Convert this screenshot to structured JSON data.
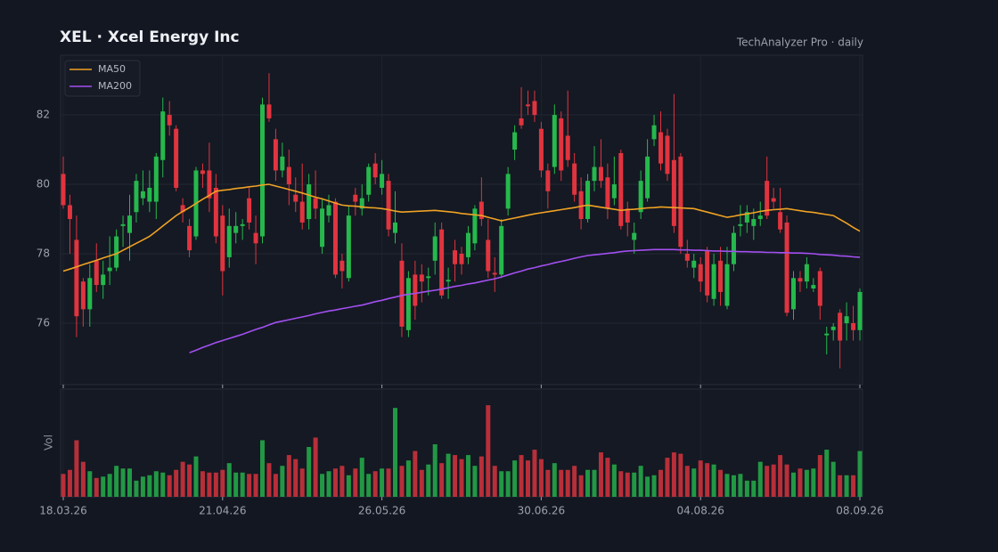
{
  "chart_data": {
    "type": "candlestick",
    "title": "XEL  ·  Xcel Energy Inc",
    "subtitle": "TechAnalyzer Pro · daily",
    "volume_label": "Vol",
    "categories": [
      "18.03.26",
      null,
      null,
      null,
      null,
      null,
      null,
      null,
      null,
      null,
      null,
      null,
      null,
      null,
      null,
      null,
      null,
      null,
      null,
      null,
      null,
      null,
      null,
      null,
      "21.04.26",
      null,
      null,
      null,
      null,
      null,
      null,
      null,
      null,
      null,
      null,
      null,
      null,
      null,
      null,
      null,
      null,
      null,
      null,
      null,
      null,
      null,
      null,
      null,
      "26.05.26",
      null,
      null,
      null,
      null,
      null,
      null,
      null,
      null,
      null,
      null,
      null,
      null,
      null,
      null,
      null,
      null,
      null,
      null,
      null,
      null,
      null,
      null,
      null,
      "30.06.26",
      null,
      null,
      null,
      null,
      null,
      null,
      null,
      null,
      null,
      null,
      null,
      null,
      null,
      null,
      null,
      null,
      null,
      null,
      null,
      null,
      null,
      null,
      null,
      "04.08.26",
      null,
      null,
      null,
      null,
      null,
      null,
      null,
      null,
      null,
      null,
      null,
      null,
      null,
      null,
      null,
      null,
      null,
      null,
      null,
      null,
      null,
      null,
      null,
      "08.09.26"
    ],
    "open": [
      80.3,
      79.4,
      78.4,
      77.2,
      76.4,
      77.8,
      77.1,
      77.5,
      77.6,
      78.8,
      78.6,
      79.2,
      79.6,
      79.5,
      79.5,
      80.7,
      82.0,
      81.6,
      79.4,
      78.8,
      78.5,
      80.4,
      80.4,
      79.9,
      79.1,
      77.9,
      78.6,
      78.8,
      79.6,
      78.6,
      78.5,
      82.3,
      81.3,
      80.4,
      80.5,
      79.7,
      79.5,
      79.0,
      79.6,
      78.2,
      79.1,
      79.5,
      77.8,
      77.3,
      79.7,
      79.3,
      79.7,
      80.6,
      79.9,
      80.1,
      78.6,
      77.8,
      75.8,
      77.4,
      77.4,
      77.3,
      77.8,
      78.7,
      77.2,
      78.1,
      78.0,
      77.9,
      78.3,
      79.5,
      78.4,
      77.45,
      77.4,
      79.3,
      81.0,
      81.9,
      82.3,
      82.4,
      81.6,
      80.4,
      80.5,
      81.9,
      81.4,
      80.6,
      79.8,
      79.0,
      80.1,
      80.5,
      80.2,
      79.6,
      80.9,
      79.3,
      78.4,
      79.2,
      79.6,
      81.3,
      81.5,
      81.4,
      80.7,
      80.8,
      78.0,
      77.6,
      77.7,
      78.1,
      76.7,
      77.8,
      76.5,
      77.7,
      78.8,
      78.9,
      78.8,
      79.0,
      80.1,
      79.6,
      79.2,
      78.9,
      76.4,
      77.3,
      77.2,
      77.0,
      77.5,
      75.65,
      75.8,
      76.3,
      76.0,
      76.0,
      75.8
    ],
    "high": [
      80.8,
      79.7,
      79.1,
      77.3,
      77.7,
      78.3,
      77.8,
      78.5,
      78.7,
      79.1,
      79.7,
      80.3,
      80.4,
      80.4,
      80.9,
      82.5,
      82.4,
      81.7,
      79.6,
      79.0,
      80.5,
      80.6,
      81.2,
      80.3,
      79.4,
      79.3,
      79.2,
      79.0,
      79.9,
      79.1,
      82.5,
      83.2,
      81.6,
      81.2,
      81.0,
      80.2,
      80.6,
      80.3,
      80.4,
      79.6,
      79.7,
      79.6,
      78.0,
      79.4,
      79.9,
      80.0,
      80.6,
      80.9,
      80.7,
      80.3,
      79.8,
      78.3,
      77.5,
      77.8,
      77.7,
      77.6,
      78.9,
      78.9,
      77.6,
      78.4,
      78.2,
      78.8,
      79.4,
      80.2,
      79.0,
      77.9,
      79.0,
      80.5,
      81.7,
      82.8,
      82.7,
      82.7,
      81.8,
      80.6,
      82.3,
      82.1,
      82.7,
      80.9,
      80.2,
      80.3,
      81.1,
      81.3,
      80.6,
      80.8,
      81.0,
      79.5,
      78.9,
      80.4,
      81.3,
      82.0,
      82.1,
      81.6,
      82.6,
      80.9,
      78.4,
      78.0,
      77.9,
      78.2,
      78.0,
      78.2,
      78.2,
      78.8,
      79.4,
      79.4,
      79.3,
      79.5,
      80.8,
      79.9,
      79.9,
      79.1,
      77.5,
      77.5,
      77.9,
      77.3,
      77.6,
      75.9,
      76.0,
      76.4,
      76.6,
      76.5,
      77.0
    ],
    "low": [
      79.3,
      78.0,
      75.6,
      75.9,
      75.9,
      76.9,
      76.7,
      77.1,
      77.5,
      78.2,
      77.8,
      78.9,
      79.4,
      79.2,
      79.0,
      80.2,
      81.4,
      79.8,
      78.9,
      77.9,
      78.4,
      79.9,
      79.2,
      78.3,
      76.8,
      77.6,
      78.3,
      78.4,
      78.7,
      77.7,
      78.3,
      81.8,
      80.1,
      80.2,
      79.4,
      79.2,
      78.7,
      78.7,
      79.0,
      78.0,
      78.9,
      77.3,
      77.0,
      77.2,
      79.1,
      79.1,
      79.5,
      80.0,
      79.7,
      78.5,
      78.3,
      75.6,
      75.6,
      76.1,
      76.6,
      76.8,
      77.4,
      76.7,
      76.7,
      77.2,
      77.4,
      77.7,
      78.1,
      78.8,
      77.3,
      76.9,
      77.3,
      79.1,
      80.7,
      81.6,
      82.0,
      81.8,
      80.2,
      79.3,
      80.3,
      80.1,
      80.5,
      79.5,
      78.7,
      78.9,
      79.8,
      79.9,
      79.0,
      79.4,
      78.7,
      78.5,
      78.0,
      79.0,
      79.5,
      81.1,
      80.4,
      80.1,
      78.6,
      78.0,
      77.6,
      77.3,
      76.9,
      76.6,
      76.5,
      76.5,
      76.4,
      77.5,
      78.5,
      78.6,
      78.4,
      78.8,
      79.0,
      79.3,
      78.6,
      76.2,
      76.1,
      76.9,
      77.0,
      76.9,
      76.1,
      75.1,
      75.5,
      74.7,
      75.5,
      75.5,
      75.5
    ],
    "close": [
      79.4,
      79.0,
      76.2,
      76.4,
      77.3,
      77.1,
      77.4,
      77.6,
      78.5,
      78.85,
      79.1,
      80.1,
      79.8,
      79.9,
      80.8,
      82.1,
      81.7,
      79.9,
      79.2,
      78.1,
      80.4,
      80.3,
      79.6,
      78.5,
      77.5,
      78.8,
      78.8,
      78.85,
      78.9,
      78.3,
      82.3,
      81.9,
      80.4,
      80.8,
      80.0,
      79.5,
      78.9,
      80.0,
      79.3,
      79.3,
      79.4,
      77.4,
      77.5,
      79.1,
      79.5,
      79.6,
      80.5,
      80.2,
      80.3,
      78.7,
      78.9,
      75.9,
      77.3,
      76.5,
      77.2,
      77.35,
      78.5,
      76.8,
      77.25,
      77.7,
      77.7,
      78.6,
      79.3,
      79.0,
      77.5,
      77.4,
      78.8,
      80.3,
      81.5,
      81.7,
      82.25,
      82.0,
      80.4,
      79.8,
      82.0,
      80.4,
      80.7,
      79.7,
      79.0,
      80.1,
      80.5,
      80.1,
      79.3,
      80.0,
      78.8,
      78.9,
      78.6,
      80.1,
      80.8,
      81.7,
      80.6,
      80.3,
      78.8,
      78.2,
      77.8,
      77.8,
      77.2,
      76.8,
      77.7,
      76.9,
      77.7,
      78.6,
      78.85,
      79.2,
      79.0,
      79.1,
      79.1,
      79.5,
      78.7,
      76.3,
      77.3,
      77.2,
      77.7,
      77.1,
      76.5,
      75.7,
      75.9,
      75.5,
      76.2,
      75.8,
      76.9
    ],
    "volume": [
      0.85,
      1.0,
      2.1,
      1.3,
      0.95,
      0.7,
      0.75,
      0.85,
      1.15,
      1.05,
      1.05,
      0.6,
      0.75,
      0.8,
      0.95,
      0.9,
      0.8,
      1.0,
      1.3,
      1.2,
      1.5,
      0.95,
      0.9,
      0.9,
      1.0,
      1.25,
      0.9,
      0.9,
      0.85,
      0.85,
      2.1,
      1.25,
      0.85,
      1.15,
      1.55,
      1.4,
      1.05,
      1.85,
      2.2,
      0.85,
      0.95,
      1.05,
      1.15,
      0.8,
      1.05,
      1.45,
      0.85,
      0.95,
      1.05,
      1.05,
      3.3,
      1.15,
      1.35,
      1.7,
      1.0,
      1.2,
      1.95,
      1.25,
      1.6,
      1.55,
      1.4,
      1.55,
      1.15,
      1.5,
      3.4,
      1.15,
      0.95,
      0.95,
      1.35,
      1.55,
      1.35,
      1.75,
      1.4,
      1.0,
      1.25,
      1.0,
      1.0,
      1.15,
      0.8,
      1.0,
      1.0,
      1.65,
      1.45,
      1.2,
      0.95,
      0.9,
      0.9,
      1.15,
      0.75,
      0.8,
      1.0,
      1.45,
      1.65,
      1.6,
      1.15,
      1.05,
      1.35,
      1.25,
      1.2,
      1.0,
      0.85,
      0.8,
      0.85,
      0.6,
      0.6,
      1.3,
      1.15,
      1.2,
      1.55,
      1.2,
      0.9,
      1.05,
      1.0,
      1.05,
      1.55,
      1.75,
      1.3,
      0.8,
      0.8,
      0.8,
      1.7
    ],
    "volume_ylim": [
      0,
      4
    ],
    "series": [
      {
        "name": "MA50",
        "color": "#f0a224",
        "values": [
          77.5,
          77.56,
          77.62,
          77.69,
          77.75,
          77.81,
          77.88,
          77.94,
          78.0,
          78.1,
          78.2,
          78.3,
          78.4,
          78.5,
          78.65,
          78.8,
          78.95,
          79.1,
          79.22,
          79.33,
          79.45,
          79.57,
          79.68,
          79.8,
          79.83,
          79.85,
          79.88,
          79.9,
          79.93,
          79.95,
          79.98,
          80.0,
          79.95,
          79.9,
          79.85,
          79.8,
          79.75,
          79.69,
          79.63,
          79.58,
          79.52,
          79.46,
          79.4,
          79.38,
          79.37,
          79.35,
          79.33,
          79.32,
          79.3,
          79.27,
          79.23,
          79.2,
          79.21,
          79.22,
          79.23,
          79.24,
          79.25,
          79.23,
          79.21,
          79.19,
          79.16,
          79.14,
          79.12,
          79.1,
          79.05,
          79.0,
          78.95,
          78.99,
          79.03,
          79.07,
          79.11,
          79.15,
          79.18,
          79.21,
          79.24,
          79.27,
          79.3,
          79.33,
          79.37,
          79.4,
          79.37,
          79.34,
          79.31,
          79.28,
          79.25,
          79.27,
          79.28,
          79.3,
          79.32,
          79.33,
          79.35,
          79.34,
          79.33,
          79.32,
          79.31,
          79.3,
          79.25,
          79.2,
          79.15,
          79.1,
          79.05,
          79.08,
          79.12,
          79.15,
          79.18,
          79.22,
          79.25,
          79.27,
          79.28,
          79.3,
          79.27,
          79.24,
          79.21,
          79.19,
          79.16,
          79.13,
          79.1,
          78.99,
          78.88,
          78.76,
          78.65
        ]
      },
      {
        "name": "MA200",
        "color": "#a34ff0",
        "values": [
          null,
          null,
          null,
          null,
          null,
          null,
          null,
          null,
          null,
          null,
          null,
          null,
          null,
          null,
          null,
          null,
          null,
          null,
          null,
          75.15,
          75.22,
          75.3,
          75.37,
          75.44,
          75.5,
          75.56,
          75.62,
          75.68,
          75.75,
          75.82,
          75.88,
          75.95,
          76.02,
          76.06,
          76.1,
          76.14,
          76.18,
          76.22,
          76.27,
          76.31,
          76.35,
          76.38,
          76.42,
          76.45,
          76.49,
          76.52,
          76.57,
          76.62,
          76.66,
          76.71,
          76.75,
          76.8,
          76.83,
          76.86,
          76.89,
          76.92,
          76.95,
          76.98,
          77.02,
          77.06,
          77.09,
          77.13,
          77.16,
          77.2,
          77.24,
          77.28,
          77.33,
          77.39,
          77.45,
          77.5,
          77.56,
          77.6,
          77.65,
          77.69,
          77.74,
          77.78,
          77.82,
          77.87,
          77.91,
          77.95,
          77.97,
          77.99,
          78.01,
          78.03,
          78.06,
          78.08,
          78.09,
          78.1,
          78.11,
          78.12,
          78.12,
          78.12,
          78.12,
          78.11,
          78.11,
          78.1,
          78.1,
          78.09,
          78.08,
          78.08,
          78.07,
          78.07,
          78.06,
          78.06,
          78.05,
          78.05,
          78.04,
          78.04,
          78.03,
          78.03,
          78.02,
          78.02,
          78.01,
          78.0,
          77.98,
          77.97,
          77.96,
          77.94,
          77.93,
          77.91,
          77.9
        ]
      }
    ],
    "up_color": "#26b84c",
    "down_color": "#e0343f",
    "ylim": [
      74.23,
      83.72
    ],
    "yticks": [
      76,
      78,
      80,
      82
    ],
    "grid": true,
    "legend": "upper left"
  }
}
